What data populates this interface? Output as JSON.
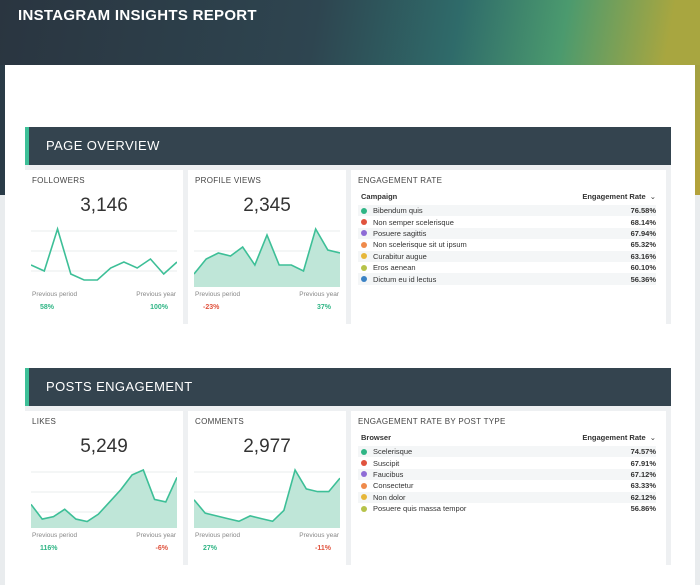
{
  "report_title": "INSTAGRAM INSIGHTS REPORT",
  "colors": {
    "accent": "#3dbf97",
    "header_bg": "#34444f",
    "positive": "#2fb585",
    "negative": "#e0533e"
  },
  "page_overview": {
    "title": "PAGE OVERVIEW",
    "followers": {
      "label": "FOLLOWERS",
      "value": "3,146",
      "prev_period_label": "Previous period",
      "prev_year_label": "Previous year",
      "prev_period_pct": "58%",
      "prev_year_pct": "100%",
      "series": [
        6,
        4,
        18,
        3,
        1,
        1,
        5,
        7,
        5,
        8,
        3,
        7
      ]
    },
    "profile_views": {
      "label": "PROFILE VIEWS",
      "value": "2,345",
      "prev_period_label": "Previous period",
      "prev_year_label": "Previous year",
      "prev_period_pct": "-23%",
      "prev_year_pct": "37%",
      "series": [
        3,
        8,
        10,
        9,
        12,
        6,
        16,
        6,
        6,
        4,
        18,
        11,
        10
      ]
    },
    "engagement": {
      "label": "ENGAGEMENT RATE",
      "col1": "Campaign",
      "col2": "Engagement Rate",
      "rows": [
        {
          "name": "Bibendum quis",
          "value": "76.58%",
          "color": "#2fb585"
        },
        {
          "name": "Non semper scelerisque",
          "value": "68.14%",
          "color": "#e0533e"
        },
        {
          "name": "Posuere sagittis",
          "value": "67.94%",
          "color": "#8e6bd6"
        },
        {
          "name": "Non scelerisque sit ut ipsum",
          "value": "65.32%",
          "color": "#ef8a4b"
        },
        {
          "name": "Curabitur augue",
          "value": "63.16%",
          "color": "#e6b73a"
        },
        {
          "name": "Eros aenean",
          "value": "60.10%",
          "color": "#b6c34a"
        },
        {
          "name": "Dictum eu id lectus",
          "value": "56.36%",
          "color": "#3b82c4"
        }
      ]
    }
  },
  "posts_engagement": {
    "title": "POSTS ENGAGEMENT",
    "likes": {
      "label": "LIKES",
      "value": "5,249",
      "prev_period_label": "Previous period",
      "prev_year_label": "Previous year",
      "prev_period_pct": "116%",
      "prev_year_pct": "-6%",
      "series": [
        8,
        2,
        3,
        6,
        2,
        1,
        4,
        9,
        14,
        20,
        22,
        10,
        9,
        19
      ]
    },
    "comments": {
      "label": "COMMENTS",
      "value": "2,977",
      "prev_period_label": "Previous period",
      "prev_year_label": "Previous year",
      "prev_period_pct": "27%",
      "prev_year_pct": "-11%",
      "series": [
        9,
        4,
        3,
        2,
        1,
        3,
        2,
        1,
        5,
        20,
        13,
        12,
        12,
        17
      ]
    },
    "engagement": {
      "label": "ENGAGEMENT RATE BY POST TYPE",
      "col1": "Browser",
      "col2": "Engagement Rate",
      "rows": [
        {
          "name": "Scelerisque",
          "value": "74.57%",
          "color": "#2fb585"
        },
        {
          "name": "Suscipit",
          "value": "67.91%",
          "color": "#e0533e"
        },
        {
          "name": "Faucibus",
          "value": "67.12%",
          "color": "#8e6bd6"
        },
        {
          "name": "Consectetur",
          "value": "63.33%",
          "color": "#ef8a4b"
        },
        {
          "name": "Non dolor",
          "value": "62.12%",
          "color": "#e6b73a"
        },
        {
          "name": "Posuere quis massa tempor",
          "value": "56.86%",
          "color": "#b6c34a"
        }
      ]
    }
  }
}
